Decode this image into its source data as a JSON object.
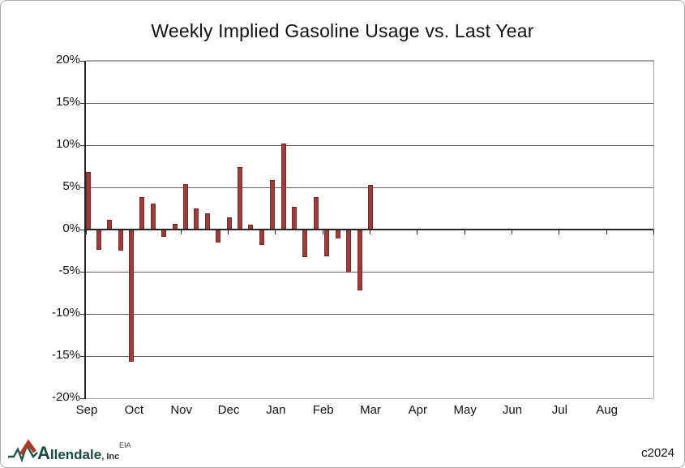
{
  "title": "Weekly Implied Gasoline Usage vs. Last Year",
  "footer": {
    "logo_name": "Allendale",
    "logo_suffix": ", Inc.",
    "source_label": "EIA",
    "copyright": "c2024"
  },
  "chart_data": {
    "type": "bar",
    "title": "Weekly Implied Gasoline Usage vs. Last Year",
    "x_unit": "week",
    "categories_months": [
      "Sep",
      "Oct",
      "Nov",
      "Dec",
      "Jan",
      "Feb",
      "Mar",
      "Apr",
      "May",
      "Jun",
      "Jul",
      "Aug"
    ],
    "weeks_per_year": 52,
    "weeks_plotted": 27,
    "values": [
      6.8,
      -2.4,
      1.2,
      -2.5,
      -15.7,
      3.8,
      3.1,
      -0.9,
      0.7,
      5.4,
      2.5,
      1.9,
      -1.5,
      1.4,
      7.4,
      0.6,
      -1.8,
      5.9,
      10.2,
      2.7,
      -3.3,
      3.8,
      -3.2,
      -1.1,
      -5.1,
      -7.2,
      5.3
    ],
    "ylim": [
      -20,
      20
    ],
    "ytick_step": 5,
    "ytick_labels": [
      "20%",
      "15%",
      "10%",
      "5%",
      "0%",
      "-5%",
      "-10%",
      "-15%",
      "-20%"
    ],
    "grid": true,
    "legend": "none",
    "bar_color": "#9e3c3c",
    "bar_border_color": "#742929",
    "axis_color": "#262626",
    "gridline_color": "#5f5f5f",
    "plot_border_color": "#a6a6a6",
    "logo_teal": "#1c5348",
    "logo_red": "#a63b2a"
  }
}
